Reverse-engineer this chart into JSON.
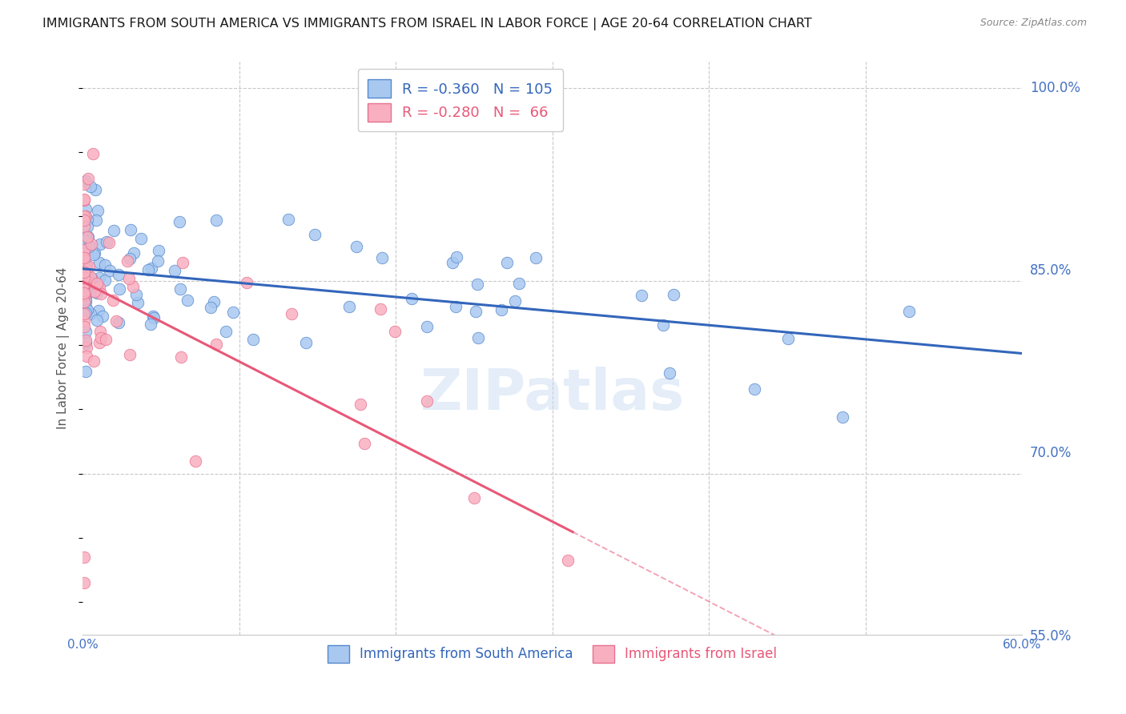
{
  "title": "IMMIGRANTS FROM SOUTH AMERICA VS IMMIGRANTS FROM ISRAEL IN LABOR FORCE | AGE 20-64 CORRELATION CHART",
  "source": "Source: ZipAtlas.com",
  "ylabel": "In Labor Force | Age 20-64",
  "xlim": [
    0.0,
    0.6
  ],
  "ylim": [
    0.575,
    1.02
  ],
  "xticks": [
    0.0,
    0.1,
    0.2,
    0.3,
    0.4,
    0.5,
    0.6
  ],
  "xticklabels": [
    "0.0%",
    "",
    "",
    "",
    "",
    "",
    "60.0%"
  ],
  "ytick_labels_right": [
    "100.0%",
    "85.0%",
    "70.0%",
    "55.0%"
  ],
  "ytick_vals_right": [
    1.0,
    0.85,
    0.7,
    0.55
  ],
  "grid_color": "#c8c8c8",
  "background_color": "#ffffff",
  "blue_fill": "#a8c8f0",
  "blue_edge": "#5588cc",
  "blue_line": "#3366bb",
  "pink_fill": "#f8b0c0",
  "pink_edge": "#e87090",
  "pink_line": "#e85878",
  "R_blue": -0.36,
  "N_blue": 105,
  "R_pink": -0.28,
  "N_pink": 66,
  "watermark": "ZIPatlas",
  "legend_blue_label": "Immigrants from South America",
  "legend_pink_label": "Immigrants from Israel",
  "title_fontsize": 11.5,
  "axis_label_fontsize": 11,
  "tick_label_fontsize": 11
}
